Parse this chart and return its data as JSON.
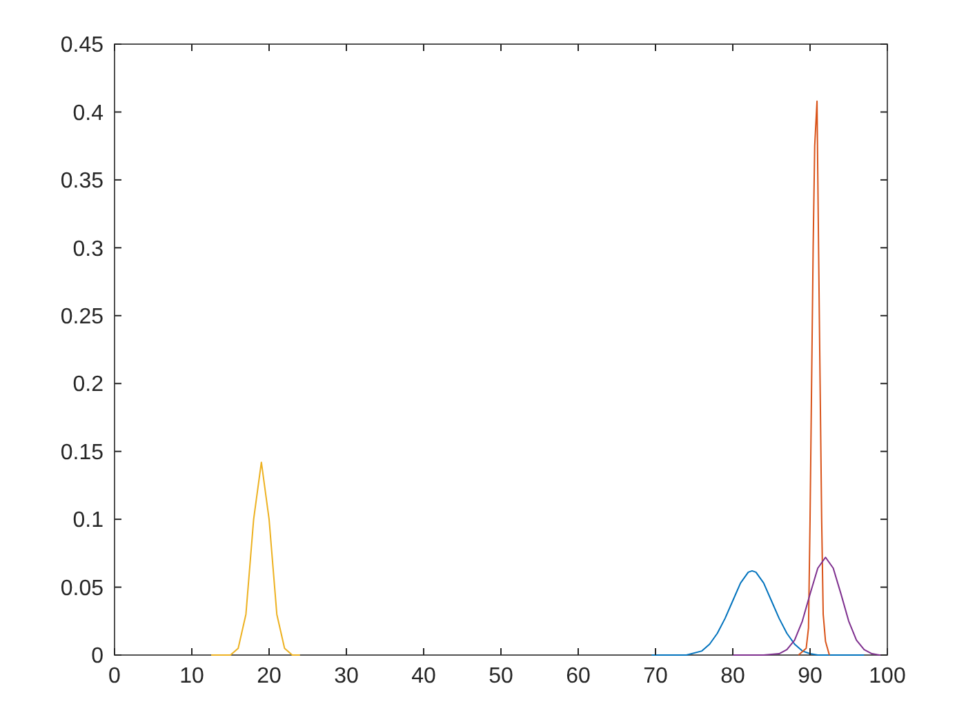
{
  "chart_data": {
    "type": "line",
    "xlim": [
      0,
      100
    ],
    "ylim": [
      0,
      0.45
    ],
    "xticks": [
      0,
      10,
      20,
      30,
      40,
      50,
      60,
      70,
      80,
      90,
      100
    ],
    "yticks": [
      0,
      0.05,
      0.1,
      0.15,
      0.2,
      0.25,
      0.3,
      0.35,
      0.4,
      0.45
    ],
    "grid": false,
    "line_style": "solid",
    "series": [
      {
        "color": "#0072bd",
        "x": [
          69.5,
          74,
          76,
          77,
          78,
          79,
          80,
          81,
          82,
          82.5,
          83,
          84,
          85,
          86,
          87,
          88,
          89,
          90,
          91,
          97
        ],
        "values": [
          0,
          0,
          0.003,
          0.008,
          0.016,
          0.027,
          0.04,
          0.053,
          0.061,
          0.062,
          0.061,
          0.053,
          0.04,
          0.027,
          0.016,
          0.008,
          0.003,
          0.001,
          0,
          0
        ]
      },
      {
        "color": "#d95319",
        "x": [
          88.5,
          89.5,
          89.8,
          90,
          90.4,
          90.6,
          90.9,
          91.1,
          91.3,
          91.5,
          91.7,
          92,
          92.5
        ],
        "values": [
          0,
          0.005,
          0.02,
          0.1,
          0.3,
          0.375,
          0.408,
          0.3,
          0.2,
          0.1,
          0.03,
          0.01,
          0
        ]
      },
      {
        "color": "#edb120",
        "x": [
          12.5,
          15,
          16,
          17,
          18,
          19,
          20,
          21,
          22,
          23,
          24
        ],
        "values": [
          0,
          0,
          0.005,
          0.03,
          0.1,
          0.142,
          0.1,
          0.03,
          0.005,
          0,
          0
        ]
      },
      {
        "color": "#7e2f8e",
        "x": [
          80,
          84,
          86,
          87,
          88,
          89,
          90,
          91,
          92,
          93,
          94,
          95,
          96,
          97,
          98,
          99,
          100
        ],
        "values": [
          0,
          0,
          0.001,
          0.004,
          0.011,
          0.025,
          0.045,
          0.064,
          0.072,
          0.064,
          0.045,
          0.025,
          0.011,
          0.004,
          0.001,
          0,
          0
        ]
      }
    ]
  }
}
